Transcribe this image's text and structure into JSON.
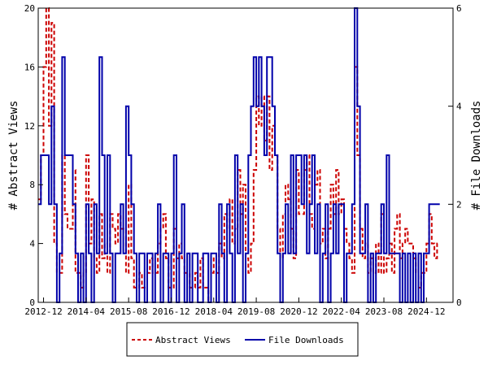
{
  "chart_data": {
    "type": "line",
    "title": "",
    "x_tick_labels": [
      "2012-12",
      "2014-04",
      "2015-08",
      "2016-12",
      "2018-04",
      "2019-08",
      "2020-12",
      "2022-04",
      "2023-08",
      "2024-12"
    ],
    "x_range": [
      "2012-10",
      "2025-10"
    ],
    "y_left": {
      "label": "# Abstract Views",
      "ylim": [
        0,
        20
      ],
      "ticks": [
        "0",
        "4",
        "8",
        "12",
        "16",
        "20"
      ]
    },
    "y_right": {
      "label": "# File Downloads",
      "ylim": [
        0,
        6
      ],
      "ticks": [
        "0",
        "2",
        "4",
        "6"
      ]
    },
    "grid": false,
    "legend_position": "bottom",
    "series": [
      {
        "name": "Abstract Views",
        "axis": "left",
        "color": "#cc0000",
        "style": "dashed",
        "points": [
          [
            "2012-10",
            7
          ],
          [
            "2012-11",
            10
          ],
          [
            "2012-12",
            16
          ],
          [
            "2013-01",
            20
          ],
          [
            "2013-02",
            12
          ],
          [
            "2013-03",
            19
          ],
          [
            "2013-04",
            4
          ],
          [
            "2013-05",
            2
          ],
          [
            "2013-06",
            2
          ],
          [
            "2013-07",
            10
          ],
          [
            "2013-08",
            6
          ],
          [
            "2013-09",
            5
          ],
          [
            "2013-10",
            5
          ],
          [
            "2013-11",
            9
          ],
          [
            "2013-12",
            2
          ],
          [
            "2014-01",
            2
          ],
          [
            "2014-02",
            1
          ],
          [
            "2014-03",
            2
          ],
          [
            "2014-04",
            10
          ],
          [
            "2014-05",
            4
          ],
          [
            "2014-06",
            7
          ],
          [
            "2014-07",
            3
          ],
          [
            "2014-08",
            2
          ],
          [
            "2014-09",
            6
          ],
          [
            "2014-10",
            3
          ],
          [
            "2014-11",
            4
          ],
          [
            "2014-12",
            2
          ],
          [
            "2015-01",
            6
          ],
          [
            "2015-02",
            5
          ],
          [
            "2015-03",
            4
          ],
          [
            "2015-04",
            6
          ],
          [
            "2015-05",
            5
          ],
          [
            "2015-06",
            5
          ],
          [
            "2015-07",
            2
          ],
          [
            "2015-08",
            8
          ],
          [
            "2015-09",
            3
          ],
          [
            "2015-10",
            1
          ],
          [
            "2015-11",
            1
          ],
          [
            "2015-12",
            2
          ],
          [
            "2016-01",
            1
          ],
          [
            "2016-02",
            1
          ],
          [
            "2016-03",
            2
          ],
          [
            "2016-04",
            3
          ],
          [
            "2016-05",
            2
          ],
          [
            "2016-06",
            2
          ],
          [
            "2016-07",
            4
          ],
          [
            "2016-08",
            5
          ],
          [
            "2016-09",
            6
          ],
          [
            "2016-10",
            3
          ],
          [
            "2016-11",
            1
          ],
          [
            "2016-12",
            1
          ],
          [
            "2017-01",
            5
          ],
          [
            "2017-02",
            3
          ],
          [
            "2017-03",
            4
          ],
          [
            "2017-04",
            3
          ],
          [
            "2017-05",
            2
          ],
          [
            "2017-06",
            2
          ],
          [
            "2017-07",
            1
          ],
          [
            "2017-08",
            1
          ],
          [
            "2017-09",
            2
          ],
          [
            "2017-10",
            1
          ],
          [
            "2017-11",
            3
          ],
          [
            "2017-12",
            1
          ],
          [
            "2018-01",
            1
          ],
          [
            "2018-02",
            0
          ],
          [
            "2018-03",
            2
          ],
          [
            "2018-04",
            3
          ],
          [
            "2018-05",
            2
          ],
          [
            "2018-06",
            4
          ],
          [
            "2018-07",
            3
          ],
          [
            "2018-08",
            6
          ],
          [
            "2018-09",
            5
          ],
          [
            "2018-10",
            7
          ],
          [
            "2018-11",
            4
          ],
          [
            "2018-12",
            5
          ],
          [
            "2019-01",
            9
          ],
          [
            "2019-02",
            6
          ],
          [
            "2019-03",
            8
          ],
          [
            "2019-04",
            3
          ],
          [
            "2019-05",
            2
          ],
          [
            "2019-06",
            4
          ],
          [
            "2019-07",
            9
          ],
          [
            "2019-08",
            14
          ],
          [
            "2019-09",
            12
          ],
          [
            "2019-10",
            14
          ],
          [
            "2019-11",
            11
          ],
          [
            "2019-12",
            14
          ],
          [
            "2020-01",
            9
          ],
          [
            "2020-02",
            12
          ],
          [
            "2020-03",
            10
          ],
          [
            "2020-04",
            5
          ],
          [
            "2020-05",
            3
          ],
          [
            "2020-06",
            6
          ],
          [
            "2020-07",
            8
          ],
          [
            "2020-08",
            7
          ],
          [
            "2020-09",
            5
          ],
          [
            "2020-10",
            3
          ],
          [
            "2020-11",
            9
          ],
          [
            "2020-12",
            6
          ],
          [
            "2021-01",
            6
          ],
          [
            "2021-02",
            9
          ],
          [
            "2021-03",
            10
          ],
          [
            "2021-04",
            6
          ],
          [
            "2021-05",
            5
          ],
          [
            "2021-06",
            8
          ],
          [
            "2021-07",
            9
          ],
          [
            "2021-08",
            4
          ],
          [
            "2021-09",
            5
          ],
          [
            "2021-10",
            3
          ],
          [
            "2021-11",
            5
          ],
          [
            "2021-12",
            8
          ],
          [
            "2022-01",
            6
          ],
          [
            "2022-02",
            9
          ],
          [
            "2022-03",
            6
          ],
          [
            "2022-04",
            7
          ],
          [
            "2022-05",
            5
          ],
          [
            "2022-06",
            4
          ],
          [
            "2022-07",
            3
          ],
          [
            "2022-08",
            2
          ],
          [
            "2022-09",
            16
          ],
          [
            "2022-10",
            10
          ],
          [
            "2022-11",
            5
          ],
          [
            "2022-12",
            3
          ],
          [
            "2023-01",
            4
          ],
          [
            "2023-02",
            2
          ],
          [
            "2023-03",
            3
          ],
          [
            "2023-04",
            2
          ],
          [
            "2023-05",
            4
          ],
          [
            "2023-06",
            2
          ],
          [
            "2023-07",
            6
          ],
          [
            "2023-08",
            2
          ],
          [
            "2023-09",
            3
          ],
          [
            "2023-10",
            4
          ],
          [
            "2023-11",
            2
          ],
          [
            "2023-12",
            5
          ],
          [
            "2024-01",
            6
          ],
          [
            "2024-02",
            3
          ],
          [
            "2024-03",
            4
          ],
          [
            "2024-04",
            5
          ],
          [
            "2024-05",
            4
          ],
          [
            "2024-06",
            4
          ],
          [
            "2024-07",
            3
          ],
          [
            "2024-08",
            2
          ],
          [
            "2024-09",
            1
          ],
          [
            "2024-10",
            2
          ],
          [
            "2024-11",
            2
          ],
          [
            "2024-12",
            4
          ],
          [
            "2025-01",
            6
          ],
          [
            "2025-02",
            4
          ],
          [
            "2025-03",
            3
          ],
          [
            "2025-04",
            4
          ],
          [
            "2025-05",
            4
          ]
        ]
      },
      {
        "name": "File Downloads",
        "axis": "right",
        "color": "#0000aa",
        "style": "solid",
        "points": [
          [
            "2012-10",
            2
          ],
          [
            "2012-11",
            3
          ],
          [
            "2012-12",
            3
          ],
          [
            "2013-01",
            3
          ],
          [
            "2013-02",
            2
          ],
          [
            "2013-03",
            4
          ],
          [
            "2013-04",
            2
          ],
          [
            "2013-05",
            0
          ],
          [
            "2013-06",
            1
          ],
          [
            "2013-07",
            5
          ],
          [
            "2013-08",
            3
          ],
          [
            "2013-09",
            3
          ],
          [
            "2013-10",
            3
          ],
          [
            "2013-11",
            2
          ],
          [
            "2013-12",
            1
          ],
          [
            "2014-01",
            0
          ],
          [
            "2014-02",
            1
          ],
          [
            "2014-03",
            0
          ],
          [
            "2014-04",
            2
          ],
          [
            "2014-05",
            1
          ],
          [
            "2014-06",
            0
          ],
          [
            "2014-07",
            2
          ],
          [
            "2014-08",
            1
          ],
          [
            "2014-09",
            5
          ],
          [
            "2014-10",
            3
          ],
          [
            "2014-11",
            1
          ],
          [
            "2014-12",
            3
          ],
          [
            "2015-01",
            1
          ],
          [
            "2015-02",
            0
          ],
          [
            "2015-03",
            1
          ],
          [
            "2015-04",
            1
          ],
          [
            "2015-05",
            2
          ],
          [
            "2015-06",
            1
          ],
          [
            "2015-07",
            4
          ],
          [
            "2015-08",
            3
          ],
          [
            "2015-09",
            2
          ],
          [
            "2015-10",
            1
          ],
          [
            "2015-11",
            0
          ],
          [
            "2015-12",
            1
          ],
          [
            "2016-01",
            1
          ],
          [
            "2016-02",
            0
          ],
          [
            "2016-03",
            1
          ],
          [
            "2016-04",
            1
          ],
          [
            "2016-05",
            0
          ],
          [
            "2016-06",
            1
          ],
          [
            "2016-07",
            2
          ],
          [
            "2016-08",
            0
          ],
          [
            "2016-09",
            1
          ],
          [
            "2016-10",
            1
          ],
          [
            "2016-11",
            0
          ],
          [
            "2016-12",
            1
          ],
          [
            "2017-01",
            3
          ],
          [
            "2017-02",
            0
          ],
          [
            "2017-03",
            1
          ],
          [
            "2017-04",
            2
          ],
          [
            "2017-05",
            0
          ],
          [
            "2017-06",
            1
          ],
          [
            "2017-07",
            0
          ],
          [
            "2017-08",
            1
          ],
          [
            "2017-09",
            1
          ],
          [
            "2017-10",
            0
          ],
          [
            "2017-11",
            0
          ],
          [
            "2017-12",
            1
          ],
          [
            "2018-01",
            1
          ],
          [
            "2018-02",
            0
          ],
          [
            "2018-03",
            1
          ],
          [
            "2018-04",
            1
          ],
          [
            "2018-05",
            0
          ],
          [
            "2018-06",
            2
          ],
          [
            "2018-07",
            1
          ],
          [
            "2018-08",
            0
          ],
          [
            "2018-09",
            2
          ],
          [
            "2018-10",
            1
          ],
          [
            "2018-11",
            0
          ],
          [
            "2018-12",
            3
          ],
          [
            "2019-01",
            1
          ],
          [
            "2019-02",
            2
          ],
          [
            "2019-03",
            0
          ],
          [
            "2019-04",
            1
          ],
          [
            "2019-05",
            3
          ],
          [
            "2019-06",
            4
          ],
          [
            "2019-07",
            5
          ],
          [
            "2019-08",
            4
          ],
          [
            "2019-09",
            5
          ],
          [
            "2019-10",
            4
          ],
          [
            "2019-11",
            3
          ],
          [
            "2019-12",
            5
          ],
          [
            "2020-01",
            5
          ],
          [
            "2020-02",
            4
          ],
          [
            "2020-03",
            3
          ],
          [
            "2020-04",
            1
          ],
          [
            "2020-05",
            0
          ],
          [
            "2020-06",
            1
          ],
          [
            "2020-07",
            2
          ],
          [
            "2020-08",
            1
          ],
          [
            "2020-09",
            3
          ],
          [
            "2020-10",
            1
          ],
          [
            "2020-11",
            3
          ],
          [
            "2020-12",
            3
          ],
          [
            "2021-01",
            2
          ],
          [
            "2021-02",
            3
          ],
          [
            "2021-03",
            1
          ],
          [
            "2021-04",
            2
          ],
          [
            "2021-05",
            3
          ],
          [
            "2021-06",
            1
          ],
          [
            "2021-07",
            2
          ],
          [
            "2021-08",
            0
          ],
          [
            "2021-09",
            1
          ],
          [
            "2021-10",
            2
          ],
          [
            "2021-11",
            0
          ],
          [
            "2021-12",
            1
          ],
          [
            "2022-01",
            2
          ],
          [
            "2022-02",
            1
          ],
          [
            "2022-03",
            2
          ],
          [
            "2022-04",
            2
          ],
          [
            "2022-05",
            0
          ],
          [
            "2022-06",
            1
          ],
          [
            "2022-07",
            1
          ],
          [
            "2022-08",
            2
          ],
          [
            "2022-09",
            6
          ],
          [
            "2022-10",
            4
          ],
          [
            "2022-11",
            1
          ],
          [
            "2022-12",
            1
          ],
          [
            "2023-01",
            2
          ],
          [
            "2023-02",
            0
          ],
          [
            "2023-03",
            1
          ],
          [
            "2023-04",
            0
          ],
          [
            "2023-05",
            1
          ],
          [
            "2023-06",
            1
          ],
          [
            "2023-07",
            2
          ],
          [
            "2023-08",
            1
          ],
          [
            "2023-09",
            3
          ],
          [
            "2023-10",
            1
          ],
          [
            "2023-11",
            1
          ],
          [
            "2023-12",
            1
          ],
          [
            "2024-01",
            1
          ],
          [
            "2024-02",
            0
          ],
          [
            "2024-03",
            1
          ],
          [
            "2024-04",
            0
          ],
          [
            "2024-05",
            1
          ],
          [
            "2024-06",
            0
          ],
          [
            "2024-07",
            1
          ],
          [
            "2024-08",
            0
          ],
          [
            "2024-09",
            1
          ],
          [
            "2024-10",
            0
          ],
          [
            "2024-11",
            1
          ],
          [
            "2024-12",
            1
          ],
          [
            "2025-01",
            2
          ],
          [
            "2025-02",
            2
          ],
          [
            "2025-03",
            2
          ],
          [
            "2025-04",
            2
          ],
          [
            "2025-05",
            2
          ]
        ]
      }
    ]
  }
}
